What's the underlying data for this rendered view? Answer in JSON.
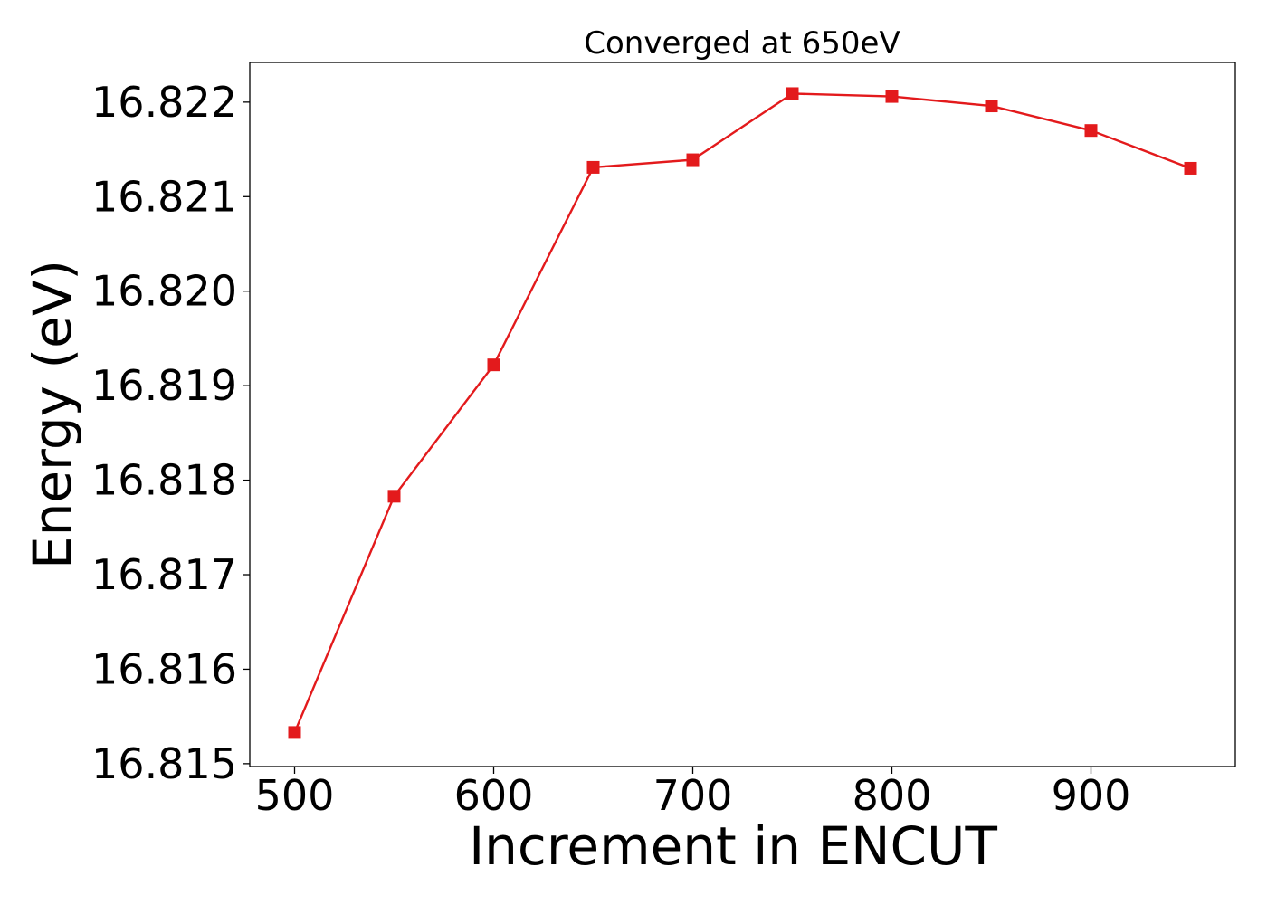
{
  "chart_data": {
    "type": "line",
    "title": "Converged at 650eV",
    "xlabel": "Increment in ENCUT",
    "ylabel": "Energy (eV)",
    "x": [
      500,
      550,
      600,
      650,
      700,
      750,
      800,
      850,
      900,
      950
    ],
    "series": [
      {
        "values": [
          16.81533,
          16.81783,
          16.81922,
          16.82131,
          16.82139,
          16.82209,
          16.82206,
          16.82196,
          16.8217,
          16.8213
        ],
        "color": "#e31a1c",
        "marker": "square"
      }
    ],
    "xticks": [
      500,
      600,
      700,
      800,
      900
    ],
    "xtick_labels": [
      "500",
      "600",
      "700",
      "800",
      "900"
    ],
    "yticks": [
      16.815,
      16.816,
      16.817,
      16.818,
      16.819,
      16.82,
      16.821,
      16.822
    ],
    "ytick_labels": [
      "16.815",
      "16.816",
      "16.817",
      "16.818",
      "16.819",
      "16.820",
      "16.821",
      "16.822"
    ],
    "xlim": [
      477.5,
      972.5
    ],
    "ylim": [
      16.81497,
      16.82242
    ],
    "grid": false,
    "legend": "none"
  }
}
